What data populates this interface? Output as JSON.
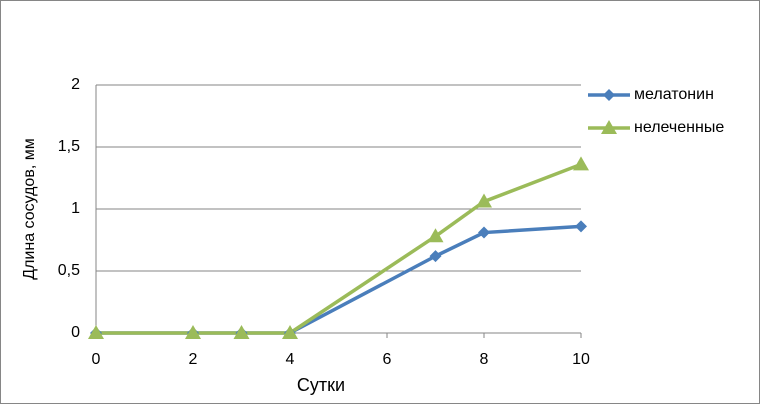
{
  "chart_data": {
    "type": "line",
    "x": [
      0,
      2,
      3,
      4,
      7,
      8,
      10
    ],
    "series": [
      {
        "name": "мелатонин",
        "color": "#4a7ebb",
        "marker": "diamond",
        "values": [
          0,
          0,
          0,
          0,
          0.62,
          0.81,
          0.86
        ]
      },
      {
        "name": "нелеченные",
        "color": "#9bbb59",
        "marker": "triangle",
        "values": [
          0,
          0,
          0,
          0,
          0.78,
          1.06,
          1.36
        ]
      }
    ],
    "xlabel": "Сутки",
    "ylabel": "Длина сосудов, мм",
    "xlim": [
      0,
      10
    ],
    "xticks": [
      0,
      2,
      4,
      6,
      8,
      10
    ],
    "ylim": [
      0,
      2
    ],
    "yticks": [
      0,
      {
        "value": 0.5,
        "label": "0,5"
      },
      1,
      {
        "value": 1.5,
        "label": "1,5"
      },
      2
    ],
    "grid": true,
    "legend": "right"
  }
}
